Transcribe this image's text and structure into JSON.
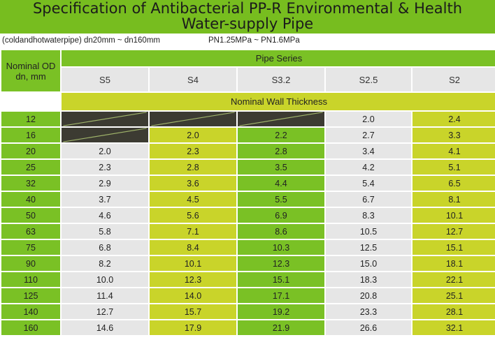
{
  "title": {
    "line1": "Specification of Antibacterial PP-R Environmental & Health",
    "line2": "Water-supply Pipe"
  },
  "subtitle": {
    "left": "(coldandhotwaterpipe) dn20mm ~ dn160mm",
    "right": "PN1.25MPa ~ PN1.6MPa"
  },
  "table": {
    "nominal_od_label": "Nominal OD dn, mm",
    "pipe_series_label": "Pipe Series",
    "wall_thickness_label": "Nominal Wall Thickness",
    "series": [
      "S5",
      "S4",
      "S3.2",
      "S2.5",
      "S2"
    ],
    "rows": [
      {
        "dn": "12",
        "values": [
          "",
          "",
          "",
          "2.0",
          "2.4"
        ]
      },
      {
        "dn": "16",
        "values": [
          "",
          "2.0",
          "2.2",
          "2.7",
          "3.3"
        ]
      },
      {
        "dn": "20",
        "values": [
          "2.0",
          "2.3",
          "2.8",
          "3.4",
          "4.1"
        ]
      },
      {
        "dn": "25",
        "values": [
          "2.3",
          "2.8",
          "3.5",
          "4.2",
          "5.1"
        ]
      },
      {
        "dn": "32",
        "values": [
          "2.9",
          "3.6",
          "4.4",
          "5.4",
          "6.5"
        ]
      },
      {
        "dn": "40",
        "values": [
          "3.7",
          "4.5",
          "5.5",
          "6.7",
          "8.1"
        ]
      },
      {
        "dn": "50",
        "values": [
          "4.6",
          "5.6",
          "6.9",
          "8.3",
          "10.1"
        ]
      },
      {
        "dn": "63",
        "values": [
          "5.8",
          "7.1",
          "8.6",
          "10.5",
          "12.7"
        ]
      },
      {
        "dn": "75",
        "values": [
          "6.8",
          "8.4",
          "10.3",
          "12.5",
          "15.1"
        ]
      },
      {
        "dn": "90",
        "values": [
          "8.2",
          "10.1",
          "12.3",
          "15.0",
          "18.1"
        ]
      },
      {
        "dn": "110",
        "values": [
          "10.0",
          "12.3",
          "15.1",
          "18.3",
          "22.1"
        ]
      },
      {
        "dn": "125",
        "values": [
          "11.4",
          "14.0",
          "17.1",
          "20.8",
          "25.1"
        ]
      },
      {
        "dn": "140",
        "values": [
          "12.7",
          "15.7",
          "19.2",
          "23.3",
          "28.1"
        ]
      },
      {
        "dn": "160",
        "values": [
          "14.6",
          "17.9",
          "21.9",
          "26.6",
          "32.1"
        ]
      }
    ]
  },
  "colors": {
    "green": "#7ac125",
    "yellow": "#c9d42a",
    "gray": "#e6e6e6",
    "dark": "#3c3b32"
  }
}
